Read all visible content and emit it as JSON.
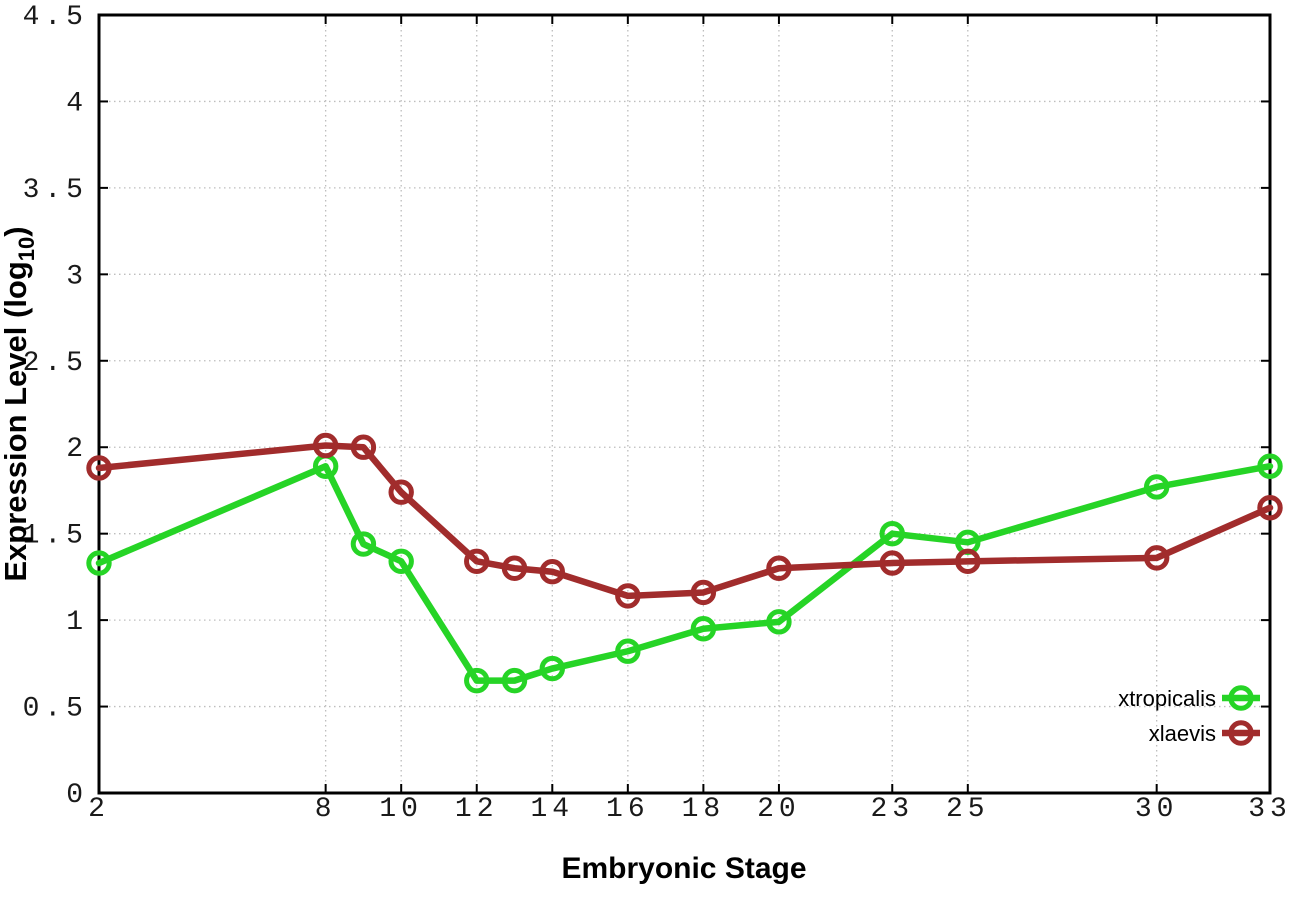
{
  "figure": {
    "background_color": "#ffffff",
    "xlabel": "Embryonic Stage",
    "ylabel_main": "Expression Level (log",
    "ylabel_sub": "10",
    "ylabel_end": ")",
    "text_color": "#000000"
  },
  "chart_data": {
    "type": "line",
    "title": "",
    "xlabel": "Embryonic Stage",
    "ylabel": "Expression Level (log10)",
    "xlim": [
      2,
      33
    ],
    "ylim": [
      0,
      4.5
    ],
    "x_ticks": [
      "2",
      "8",
      "10",
      "12",
      "14",
      "16",
      "18",
      "20",
      "23",
      "25",
      "30",
      "33"
    ],
    "y_ticks": [
      "0",
      "0.5",
      "1",
      "1.5",
      "2",
      "2.5",
      "3",
      "3.5",
      "4",
      "4.5"
    ],
    "grid": "dotted",
    "legend_position": "inside-bottom-right",
    "marker": "open-circle",
    "series": [
      {
        "name": "xtropicalis",
        "color": "#26d426",
        "x": [
          2,
          8,
          9,
          10,
          12,
          13,
          14,
          16,
          18,
          20,
          23,
          25,
          30,
          33
        ],
        "y": [
          1.33,
          1.89,
          1.44,
          1.34,
          0.65,
          0.65,
          0.72,
          0.82,
          0.95,
          0.99,
          1.5,
          1.45,
          1.77,
          1.89
        ]
      },
      {
        "name": "xlaevis",
        "color": "#a12c2c",
        "x": [
          2,
          8,
          9,
          10,
          12,
          13,
          14,
          16,
          18,
          20,
          23,
          25,
          30,
          33
        ],
        "y": [
          1.88,
          2.01,
          2.0,
          1.74,
          1.34,
          1.3,
          1.28,
          1.14,
          1.16,
          1.3,
          1.33,
          1.34,
          1.36,
          1.65
        ]
      }
    ]
  }
}
